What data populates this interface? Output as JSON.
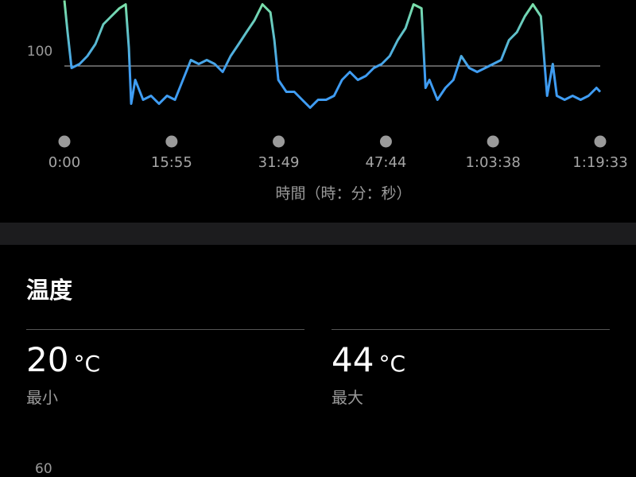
{
  "chart_data": {
    "type": "line",
    "x": [
      0,
      28,
      64,
      135,
      205,
      276,
      347,
      418,
      489,
      546,
      574,
      595,
      631,
      701,
      772,
      843,
      914,
      985,
      1056,
      1127,
      1197,
      1268,
      1339,
      1410,
      1481,
      1552,
      1622,
      1693,
      1764,
      1835,
      1870,
      1906,
      1977,
      2048,
      2118,
      2189,
      2260,
      2331,
      2402,
      2473,
      2543,
      2614,
      2685,
      2756,
      2827,
      2898,
      2969,
      3039,
      3110,
      3181,
      3217,
      3252,
      3323,
      3394,
      3465,
      3535,
      3606,
      3677,
      3748,
      3819,
      3890,
      3960,
      4031,
      4102,
      4173,
      4244,
      4300,
      4350,
      4386,
      4456,
      4527,
      4598,
      4669,
      4740,
      4773
    ],
    "values": [
      133,
      117,
      99,
      101,
      105,
      111,
      121,
      125,
      129,
      131,
      109,
      81,
      93,
      83,
      85,
      81,
      85,
      83,
      93,
      103,
      101,
      103,
      101,
      97,
      105,
      111,
      117,
      123,
      131,
      127,
      113,
      93,
      87,
      87,
      83,
      79,
      83,
      83,
      85,
      93,
      97,
      93,
      95,
      99,
      101,
      105,
      113,
      119,
      131,
      129,
      89,
      93,
      83,
      89,
      93,
      105,
      99,
      97,
      99,
      101,
      103,
      113,
      117,
      125,
      131,
      125,
      85,
      101,
      85,
      83,
      85,
      83,
      85,
      89,
      87
    ],
    "colors": [
      "#7ee3a4",
      "#3f9cf2"
    ],
    "xlim": [
      0,
      4773
    ],
    "ylim": [
      60,
      140
    ],
    "xticks": [
      {
        "value": 0,
        "label": "0:00"
      },
      {
        "value": 955,
        "label": "15:55"
      },
      {
        "value": 1909,
        "label": "31:49"
      },
      {
        "value": 2864,
        "label": "47:44"
      },
      {
        "value": 3818,
        "label": "1:03:38"
      },
      {
        "value": 4773,
        "label": "1:19:33"
      }
    ],
    "yticks": [
      100
    ],
    "x_label": "時間（時：分：秒）"
  },
  "temperature": {
    "title": "温度",
    "stats": [
      {
        "value": 20,
        "unit": "°C",
        "label": "最小"
      },
      {
        "value": 44,
        "unit": "°C",
        "label": "最大"
      }
    ],
    "chart": {
      "yticks": [
        60
      ]
    }
  }
}
